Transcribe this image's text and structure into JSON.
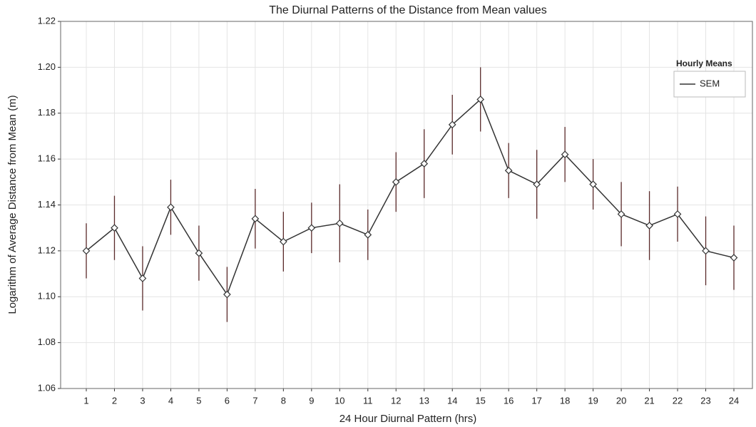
{
  "chart_data": {
    "type": "line",
    "title": "The Diurnal Patterns of the Distance from Mean values",
    "xlabel": "24 Hour Diurnal Pattern (hrs)",
    "ylabel": "Logarithm of Average Distance from Mean (m)",
    "categories": [
      "1",
      "2",
      "3",
      "4",
      "5",
      "6",
      "7",
      "8",
      "9",
      "10",
      "11",
      "12",
      "13",
      "14",
      "15",
      "16",
      "17",
      "18",
      "19",
      "20",
      "21",
      "22",
      "23",
      "24"
    ],
    "series": [
      {
        "name": "SEM",
        "color": "#333333",
        "error_color": "#5a2a2a",
        "values": [
          1.12,
          1.13,
          1.108,
          1.139,
          1.119,
          1.101,
          1.134,
          1.124,
          1.13,
          1.132,
          1.127,
          1.15,
          1.158,
          1.175,
          1.186,
          1.155,
          1.149,
          1.162,
          1.149,
          1.136,
          1.131,
          1.136,
          1.12,
          1.117
        ],
        "errors": [
          0.012,
          0.014,
          0.014,
          0.012,
          0.012,
          0.012,
          0.013,
          0.013,
          0.011,
          0.017,
          0.011,
          0.013,
          0.015,
          0.013,
          0.014,
          0.012,
          0.015,
          0.012,
          0.011,
          0.014,
          0.015,
          0.012,
          0.015,
          0.014
        ]
      }
    ],
    "legend_title": "Hourly Means",
    "legend": "top-right",
    "ylim": [
      1.06,
      1.22
    ],
    "yticks": [
      {
        "value": 1.06,
        "label": "1.06"
      },
      {
        "value": 1.08,
        "label": "1.08"
      },
      {
        "value": 1.1,
        "label": "1.10"
      },
      {
        "value": 1.12,
        "label": "1.12"
      },
      {
        "value": 1.14,
        "label": "1.14"
      },
      {
        "value": 1.16,
        "label": "1.16"
      },
      {
        "value": 1.18,
        "label": "1.18"
      },
      {
        "value": 1.2,
        "label": "1.20"
      },
      {
        "value": 1.22,
        "label": "1.22"
      }
    ],
    "grid": true
  }
}
